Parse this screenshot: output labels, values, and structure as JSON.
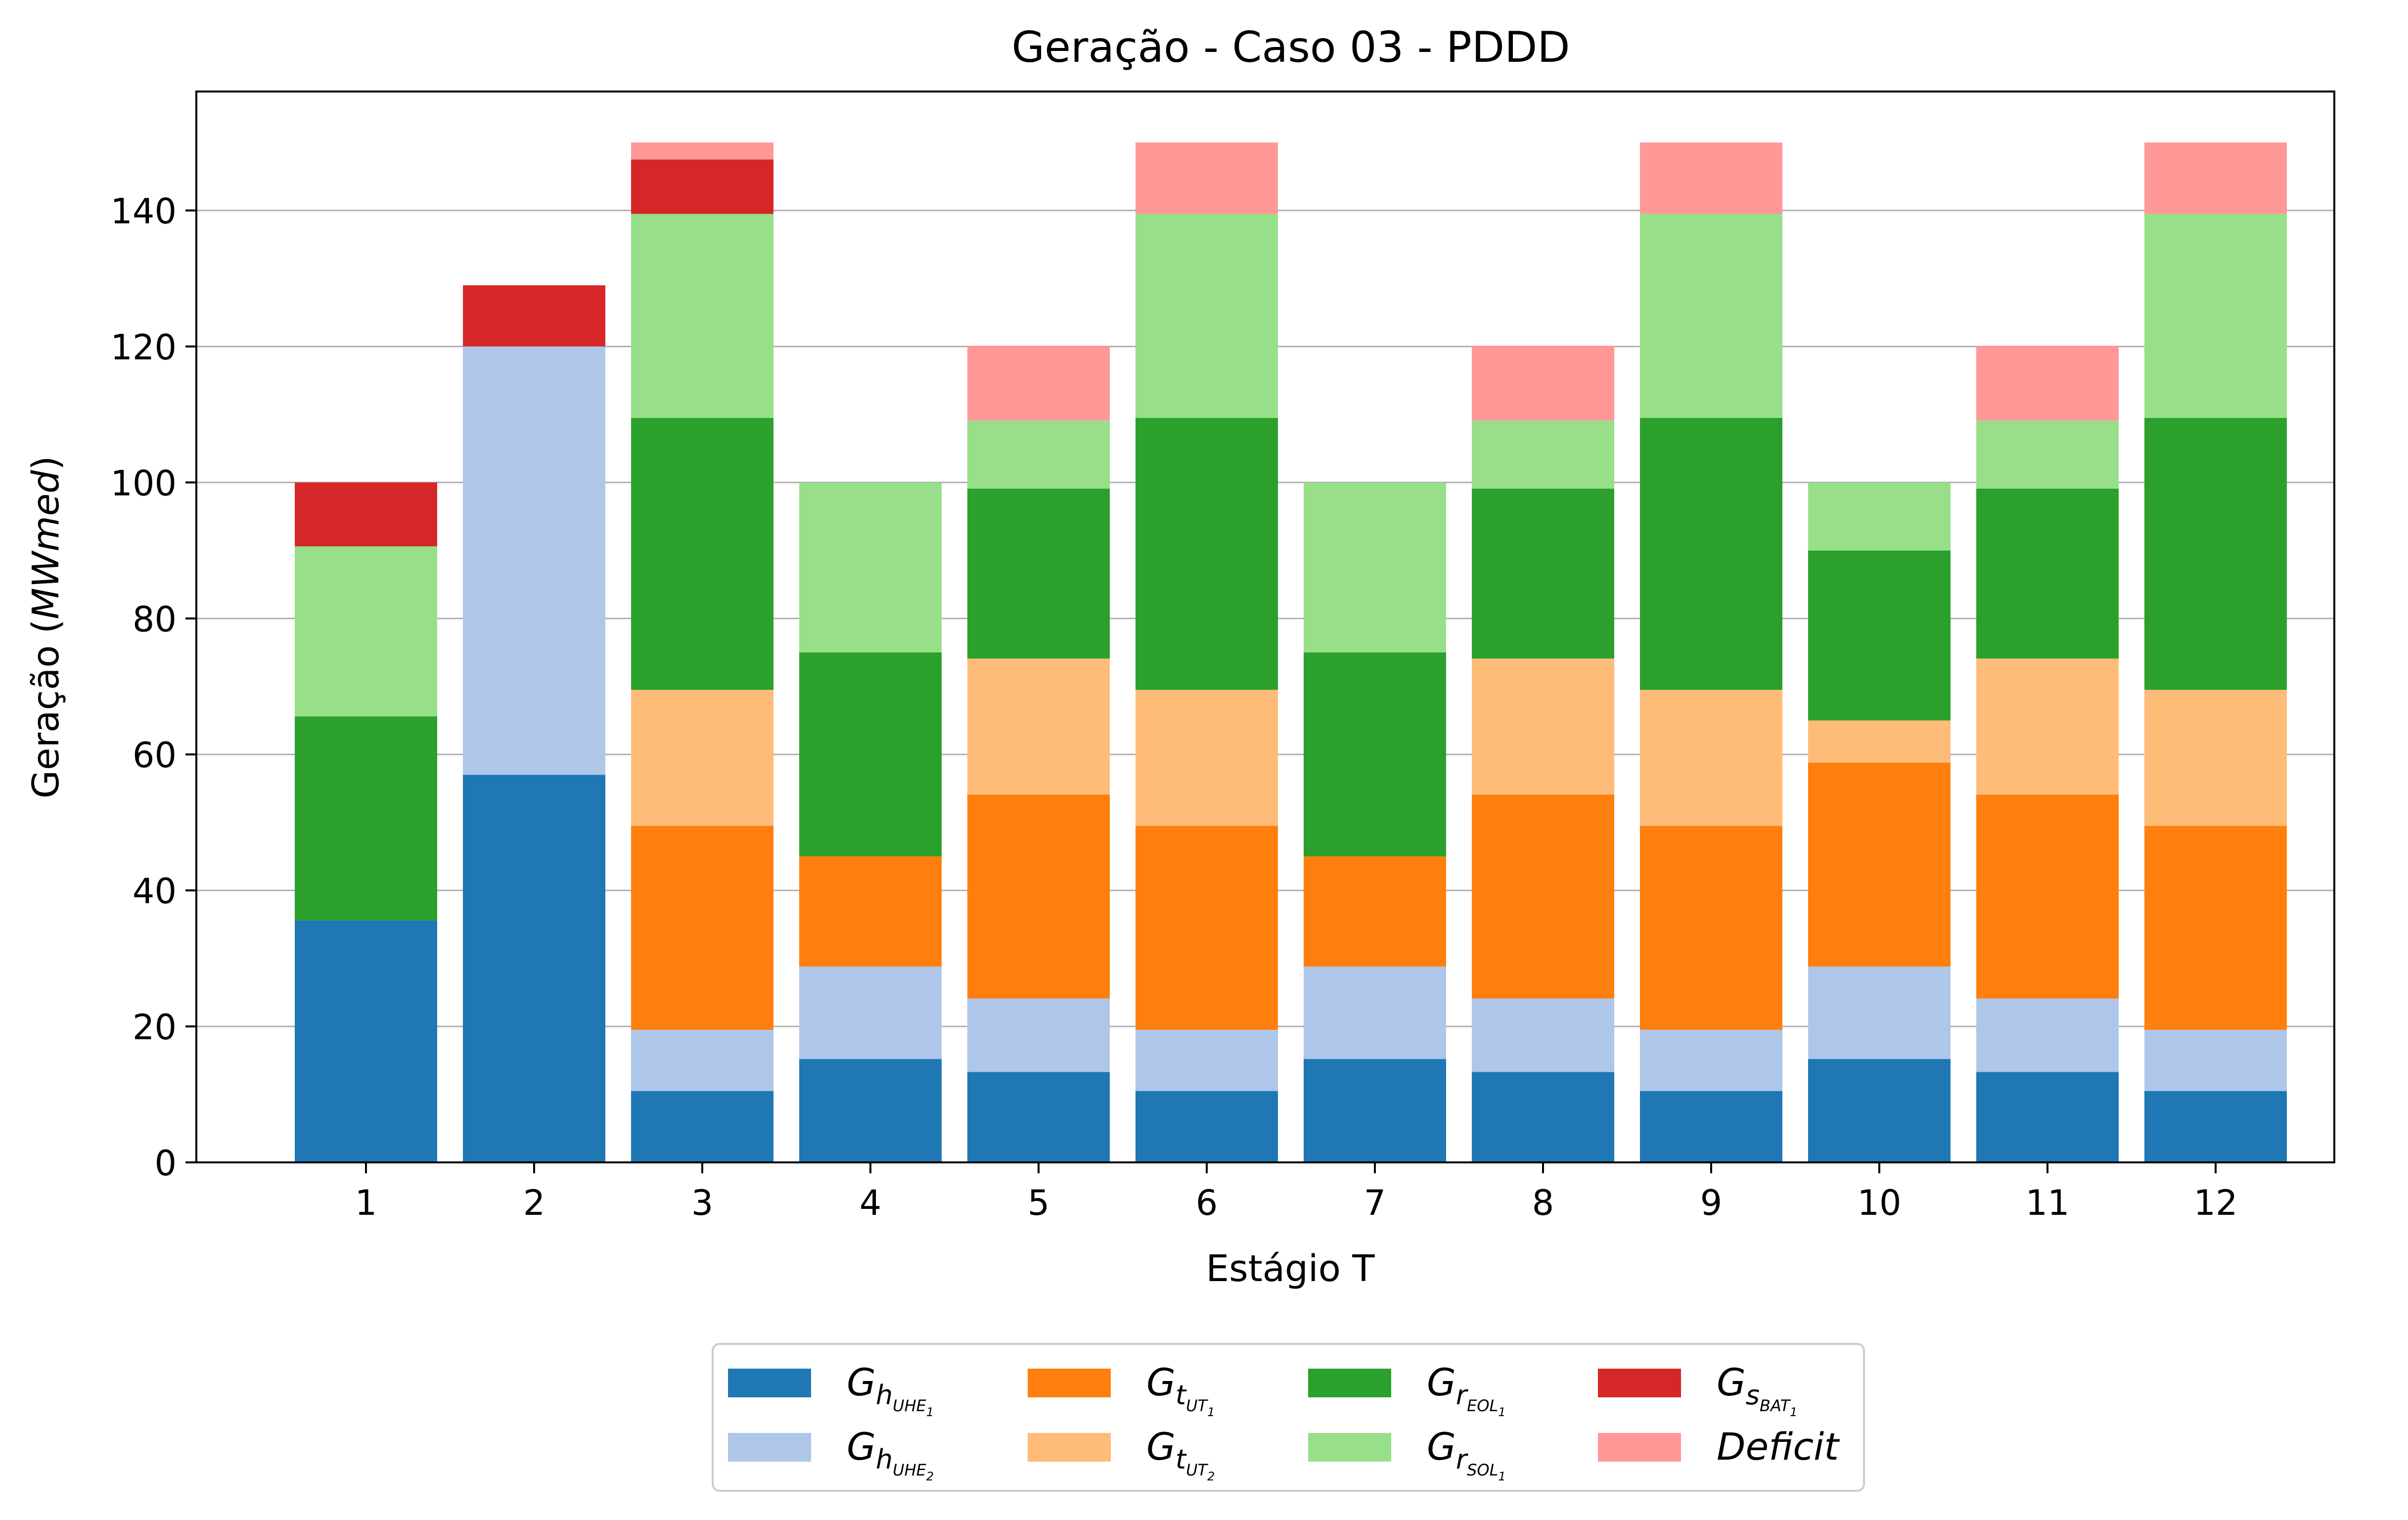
{
  "chart_data": {
    "type": "bar",
    "stacked": true,
    "title": "Geração - Caso 03 - PDDD",
    "xlabel": "Estágio T",
    "ylabel_prefix": "Geração (",
    "ylabel_unit": "MWmed",
    "ylabel_suffix": ")",
    "ylim": [
      0,
      157.5
    ],
    "yticks": [
      0,
      20,
      40,
      60,
      80,
      100,
      120,
      140
    ],
    "grid": "y",
    "legend_position": "bottom-center",
    "categories": [
      "1",
      "2",
      "3",
      "4",
      "5",
      "6",
      "7",
      "8",
      "9",
      "10",
      "11",
      "12"
    ],
    "series": [
      {
        "key": "gh_uhe1",
        "sym": "G",
        "sub": "h",
        "subsub": "UHE",
        "idx": "1",
        "color": "#1f77b4",
        "values": [
          35.6,
          57.0,
          10.5,
          15.2,
          13.3,
          10.5,
          15.2,
          13.3,
          10.5,
          15.2,
          13.3,
          10.5
        ]
      },
      {
        "key": "gh_uhe2",
        "sym": "G",
        "sub": "h",
        "subsub": "UHE",
        "idx": "2",
        "color": "#aec7e8",
        "values": [
          0,
          63.0,
          9.0,
          13.6,
          10.8,
          9.0,
          13.6,
          10.8,
          9.0,
          13.6,
          10.8,
          9.0
        ]
      },
      {
        "key": "gt_ut1",
        "sym": "G",
        "sub": "t",
        "subsub": "UT",
        "idx": "1",
        "color": "#ff7f0e",
        "values": [
          0,
          0,
          30.0,
          16.2,
          30.0,
          30.0,
          16.2,
          30.0,
          30.0,
          30.0,
          30.0,
          30.0
        ]
      },
      {
        "key": "gt_ut2",
        "sym": "G",
        "sub": "t",
        "subsub": "UT",
        "idx": "2",
        "color": "#ffbb78",
        "values": [
          0,
          0,
          20.0,
          0,
          20.0,
          20.0,
          0,
          20.0,
          20.0,
          6.2,
          20.0,
          20.0
        ]
      },
      {
        "key": "gr_eol1",
        "sym": "G",
        "sub": "r",
        "subsub": "EOL",
        "idx": "1",
        "color": "#2ca02c",
        "values": [
          30.0,
          0,
          40.0,
          30.0,
          25.0,
          40.0,
          30.0,
          25.0,
          40.0,
          25.0,
          25.0,
          40.0
        ]
      },
      {
        "key": "gr_sol1",
        "sym": "G",
        "sub": "r",
        "subsub": "SOL",
        "idx": "1",
        "color": "#98df8a",
        "values": [
          25.0,
          0,
          30.0,
          25.0,
          10.0,
          30.0,
          25.0,
          10.0,
          30.0,
          10.0,
          10.0,
          30.0
        ]
      },
      {
        "key": "gs_bat1",
        "sym": "G",
        "sub": "s",
        "subsub": "BAT",
        "idx": "1",
        "color": "#d62728",
        "values": [
          9.4,
          9.0,
          8.0,
          0,
          0,
          0,
          0,
          0,
          0,
          0,
          0,
          0
        ]
      },
      {
        "key": "deficit",
        "sym": "Deficit",
        "color": "#ff9896",
        "values": [
          0,
          0,
          2.5,
          0,
          11.0,
          10.5,
          0,
          11.0,
          10.5,
          0,
          11.0,
          10.5
        ]
      }
    ],
    "legend_order": [
      "gh_uhe1",
      "gh_uhe2",
      "gt_ut1",
      "gt_ut2",
      "gr_eol1",
      "gr_sol1",
      "gs_bat1",
      "deficit"
    ]
  }
}
